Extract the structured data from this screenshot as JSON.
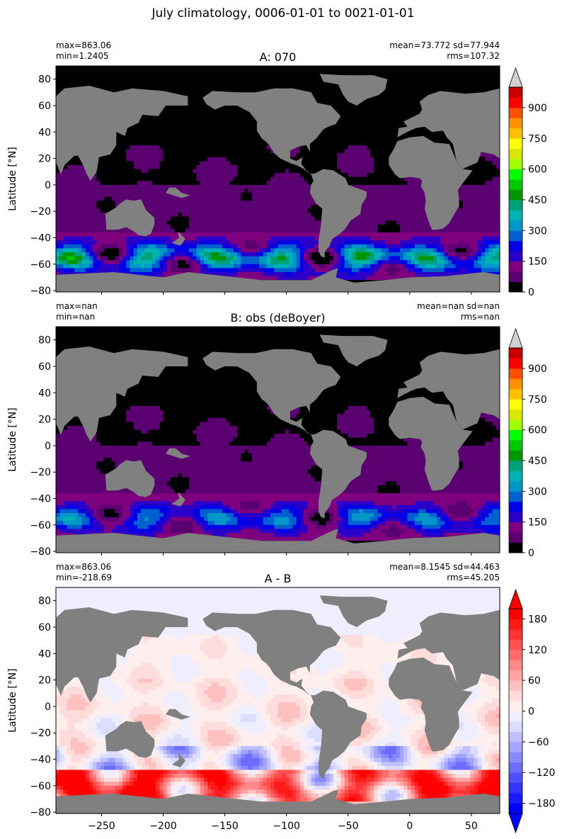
{
  "figure": {
    "title": "July climatology, 0006-01-01 to 0021-01-01"
  },
  "chart_data": [
    {
      "type": "heatmap",
      "title": "A: 070",
      "stats_left": [
        "max=863.06",
        "min=1.2405"
      ],
      "stats_right": [
        "mean=73.772 sd=77.944",
        "rms=107.32"
      ],
      "ylabel": "Latitude [°N]",
      "xlim": [
        -287,
        73
      ],
      "ylim": [
        -81,
        90
      ],
      "yticks": [
        "80",
        "60",
        "40",
        "20",
        "0",
        "−20",
        "−40",
        "−60",
        "−80"
      ],
      "xticks": [],
      "colorbar": {
        "extend": "max",
        "levels": [
          0,
          50,
          100,
          150,
          200,
          250,
          300,
          350,
          400,
          450,
          500,
          550,
          600,
          650,
          700,
          750,
          800,
          850,
          900,
          950,
          1000
        ],
        "ticklabels": [
          "0",
          "150",
          "300",
          "450",
          "600",
          "750",
          "900"
        ],
        "colors": [
          "#000000",
          "#5a0070",
          "#7f007f",
          "#2a00c8",
          "#0000e6",
          "#0060d0",
          "#0096c8",
          "#00b2b2",
          "#00a078",
          "#009600",
          "#00c800",
          "#00ff00",
          "#a0ff00",
          "#d8e800",
          "#ffff00",
          "#ffc000",
          "#ff9000",
          "#ff5000",
          "#ff0000",
          "#c80000"
        ],
        "over_color": "#d0d0d0"
      }
    },
    {
      "type": "heatmap",
      "title": "B: obs (deBoyer)",
      "stats_left": [
        "max=nan",
        "min=nan"
      ],
      "stats_right": [
        "mean=nan sd=nan",
        "rms=nan"
      ],
      "ylabel": "Latitude [°N]",
      "xlim": [
        -287,
        73
      ],
      "ylim": [
        -81,
        90
      ],
      "yticks": [
        "80",
        "60",
        "40",
        "20",
        "0",
        "−20",
        "−40",
        "−60",
        "−80"
      ],
      "xticks": [],
      "colorbar": {
        "extend": "max",
        "levels": [
          0,
          50,
          100,
          150,
          200,
          250,
          300,
          350,
          400,
          450,
          500,
          550,
          600,
          650,
          700,
          750,
          800,
          850,
          900,
          950,
          1000
        ],
        "ticklabels": [
          "0",
          "150",
          "300",
          "450",
          "600",
          "750",
          "900"
        ],
        "colors": [
          "#000000",
          "#5a0070",
          "#7f007f",
          "#2a00c8",
          "#0000e6",
          "#0060d0",
          "#0096c8",
          "#00b2b2",
          "#00a078",
          "#009600",
          "#00c800",
          "#00ff00",
          "#a0ff00",
          "#d8e800",
          "#ffff00",
          "#ffc000",
          "#ff9000",
          "#ff5000",
          "#ff0000",
          "#c80000"
        ],
        "over_color": "#d0d0d0"
      }
    },
    {
      "type": "heatmap",
      "title": "A - B",
      "stats_left": [
        "max=863.06",
        "min=-218.69"
      ],
      "stats_right": [
        "mean=8.1545 sd=44.463",
        "rms=45.205"
      ],
      "ylabel": "Latitude [°N]",
      "xlim": [
        -287,
        73
      ],
      "ylim": [
        -81,
        90
      ],
      "yticks": [
        "80",
        "60",
        "40",
        "20",
        "0",
        "−20",
        "−40",
        "−60",
        "−80"
      ],
      "xticks": [
        "−250",
        "−200",
        "−150",
        "−100",
        "−50",
        "0",
        "50"
      ],
      "colorbar": {
        "extend": "both",
        "levels": [
          -200,
          -180,
          -160,
          -140,
          -120,
          -100,
          -80,
          -60,
          -40,
          -20,
          0,
          20,
          40,
          60,
          80,
          100,
          120,
          140,
          160,
          180,
          200
        ],
        "ticklabels": [
          "−180",
          "−120",
          "−60",
          "0",
          "60",
          "120",
          "180"
        ],
        "colors": [
          "#0000ff",
          "#1a1aff",
          "#3333ff",
          "#5050ff",
          "#6c6cff",
          "#8888ff",
          "#a4a4ff",
          "#c0c0ff",
          "#dcdcff",
          "#eeeeff",
          "#ffeeee",
          "#ffdcdc",
          "#ffc0c0",
          "#ffa4a4",
          "#ff8888",
          "#ff6c6c",
          "#ff5050",
          "#ff3333",
          "#ff1a1a",
          "#ff0000"
        ],
        "under_color": "#0000ff",
        "over_color": "#ff0000"
      }
    }
  ]
}
